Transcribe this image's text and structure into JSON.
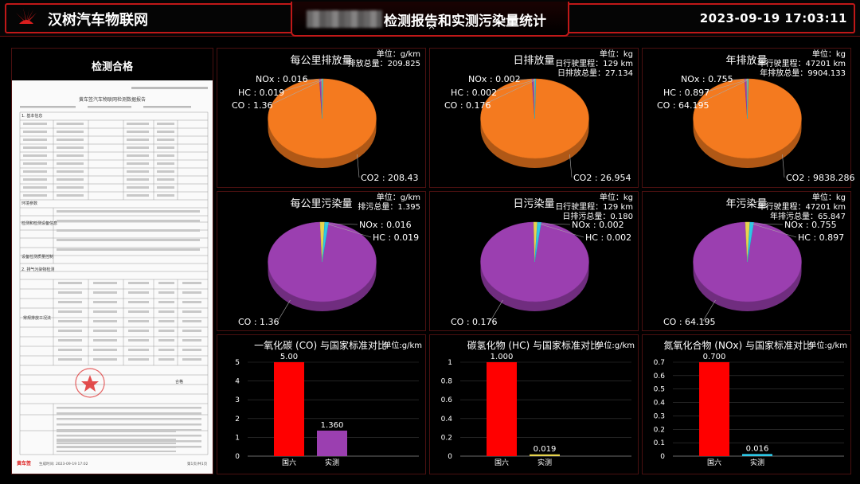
{
  "header": {
    "brand": "汉树汽车物联网",
    "title": "检测报告和实测污染量统计",
    "datetime": "2023-09-19 17:03:11",
    "close_glyph": "×"
  },
  "report": {
    "title": "检测合格",
    "doc_heading": "黄车签汽车物联网检测数据报告",
    "doc_sections": [
      "1. 基本信息",
      "环境参数",
      "检测和检测设备信息",
      "设备检测质量控制",
      "2. 排气污染物检测"
    ],
    "result_label": "常规排放工况法",
    "pass_label": "合格",
    "footer_left": "黄车签",
    "footer_time": "生成时间: 2023-09-19 17:02",
    "footer_page": "第1页/共1页"
  },
  "colors": {
    "accent_red": "#c01818",
    "pie_orange": "#f47a1f",
    "pie_purple": "#9b3fb0",
    "bar_red": "#ff0000",
    "bar_purple": "#9b3fb0",
    "bar_yellow": "#e8d44d",
    "bar_cyan": "#2ec7e6"
  },
  "emission_panels": [
    {
      "title": "每公里排放量",
      "meta": [
        "单位：g/km",
        "排放总量：209.825"
      ],
      "labels": [
        "NOx : 0.016",
        "HC : 0.019",
        "CO : 1.36",
        "CO2 : 208.43"
      ]
    },
    {
      "title": "日排放量",
      "meta": [
        "单位：kg",
        "日行驶里程：129 km",
        "日排放总量：27.134"
      ],
      "labels": [
        "NOx : 0.002",
        "HC : 0.002",
        "CO : 0.176",
        "CO2 : 26.954"
      ]
    },
    {
      "title": "年排放量",
      "meta": [
        "单位：kg",
        "年行驶里程：47201 km",
        "年排放总量：9904.133"
      ],
      "labels": [
        "NOx : 0.755",
        "HC : 0.897",
        "CO : 64.195",
        "CO2 : 9838.286"
      ]
    }
  ],
  "pollution_panels": [
    {
      "title": "每公里污染量",
      "meta": [
        "单位：g/km",
        "排污总量：1.395"
      ],
      "labels": [
        "NOx : 0.016",
        "HC : 0.019",
        "CO : 1.36"
      ]
    },
    {
      "title": "日污染量",
      "meta": [
        "单位：kg",
        "日行驶里程：129 km",
        "日排污总量：0.180"
      ],
      "labels": [
        "NOx : 0.002",
        "HC : 0.002",
        "CO : 0.176"
      ]
    },
    {
      "title": "年污染量",
      "meta": [
        "单位：kg",
        "年行驶里程：47201 km",
        "年排污总量：65.847"
      ],
      "labels": [
        "NOx : 0.755",
        "HC : 0.897",
        "CO : 64.195"
      ]
    }
  ],
  "chart_data": [
    {
      "type": "pie",
      "title": "每公里排放量",
      "slices": [
        {
          "name": "CO2",
          "value": 208.43
        },
        {
          "name": "CO",
          "value": 1.36
        },
        {
          "name": "HC",
          "value": 0.019
        },
        {
          "name": "NOx",
          "value": 0.016
        }
      ]
    },
    {
      "type": "pie",
      "title": "日排放量",
      "slices": [
        {
          "name": "CO2",
          "value": 26.954
        },
        {
          "name": "CO",
          "value": 0.176
        },
        {
          "name": "HC",
          "value": 0.002
        },
        {
          "name": "NOx",
          "value": 0.002
        }
      ]
    },
    {
      "type": "pie",
      "title": "年排放量",
      "slices": [
        {
          "name": "CO2",
          "value": 9838.286
        },
        {
          "name": "CO",
          "value": 64.195
        },
        {
          "name": "HC",
          "value": 0.897
        },
        {
          "name": "NOx",
          "value": 0.755
        }
      ]
    },
    {
      "type": "pie",
      "title": "每公里污染量",
      "slices": [
        {
          "name": "CO",
          "value": 1.36
        },
        {
          "name": "HC",
          "value": 0.019
        },
        {
          "name": "NOx",
          "value": 0.016
        }
      ]
    },
    {
      "type": "pie",
      "title": "日污染量",
      "slices": [
        {
          "name": "CO",
          "value": 0.176
        },
        {
          "name": "HC",
          "value": 0.002
        },
        {
          "name": "NOx",
          "value": 0.002
        }
      ]
    },
    {
      "type": "pie",
      "title": "年污染量",
      "slices": [
        {
          "name": "CO",
          "value": 64.195
        },
        {
          "name": "HC",
          "value": 0.897
        },
        {
          "name": "NOx",
          "value": 0.755
        }
      ]
    },
    {
      "type": "bar",
      "title": "一氧化碳 (CO) 与国家标准对比",
      "unit": "单位:g/km",
      "categories": [
        "国六",
        "实测"
      ],
      "values": [
        5.0,
        1.36
      ],
      "value_labels": [
        "5.00",
        "1.360"
      ],
      "ylim": [
        0,
        5
      ],
      "ticks": [
        0,
        1,
        2,
        3,
        4,
        5
      ]
    },
    {
      "type": "bar",
      "title": "碳氢化物 (HC) 与国家标准对比",
      "unit": "单位:g/km",
      "categories": [
        "国六",
        "实测"
      ],
      "values": [
        1.0,
        0.019
      ],
      "value_labels": [
        "1.000",
        "0.019"
      ],
      "ylim": [
        0,
        1
      ],
      "ticks": [
        0,
        0.2,
        0.4,
        0.6,
        0.8,
        1
      ]
    },
    {
      "type": "bar",
      "title": "氮氧化合物 (NOx) 与国家标准对比",
      "unit": "单位:g/km",
      "categories": [
        "国六",
        "实测"
      ],
      "values": [
        0.7,
        0.016
      ],
      "value_labels": [
        "0.700",
        "0.016"
      ],
      "ylim": [
        0,
        0.7
      ],
      "ticks": [
        0,
        0.1,
        0.2,
        0.3,
        0.4,
        0.5,
        0.6,
        0.7
      ]
    }
  ]
}
